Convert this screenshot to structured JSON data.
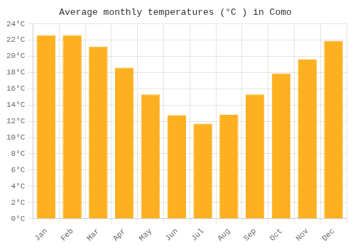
{
  "chart_data": {
    "type": "bar",
    "title": "Average monthly temperatures (°C ) in Como",
    "categories": [
      "Jan",
      "Feb",
      "Mar",
      "Apr",
      "May",
      "Jun",
      "Jul",
      "Aug",
      "Sep",
      "Oct",
      "Nov",
      "Dec"
    ],
    "values": [
      22.6,
      22.6,
      21.2,
      18.6,
      15.3,
      12.7,
      11.7,
      12.8,
      15.3,
      17.9,
      19.6,
      21.9
    ],
    "color": "#FDB020",
    "ylim": [
      0,
      24
    ],
    "yticks": [
      {
        "value": 0,
        "label": "0°C"
      },
      {
        "value": 2,
        "label": "2°C"
      },
      {
        "value": 4,
        "label": "4°C"
      },
      {
        "value": 6,
        "label": "6°C"
      },
      {
        "value": 8,
        "label": "8°C"
      },
      {
        "value": 10,
        "label": "10°C"
      },
      {
        "value": 12,
        "label": "12°C"
      },
      {
        "value": 14,
        "label": "14°C"
      },
      {
        "value": 16,
        "label": "16°C"
      },
      {
        "value": 18,
        "label": "18°C"
      },
      {
        "value": 20,
        "label": "20°C"
      },
      {
        "value": 22,
        "label": "22°C"
      },
      {
        "value": 24,
        "label": "24°C"
      }
    ],
    "grid": true
  }
}
